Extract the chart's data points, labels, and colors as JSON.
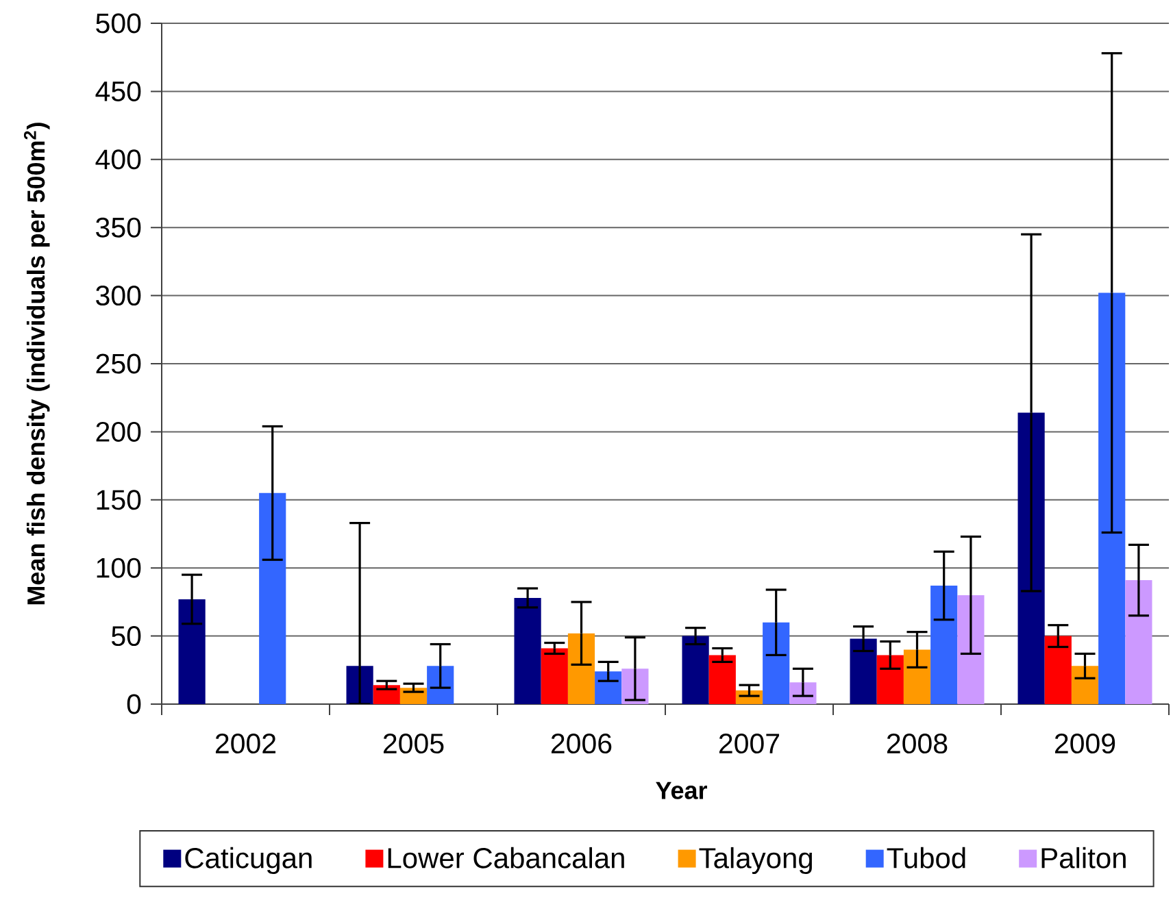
{
  "chart_data": {
    "type": "bar",
    "xlabel": "Year",
    "ylabel": "Mean fish density (individuals per 500m$^{2}$)",
    "categories": [
      "2002",
      "2005",
      "2006",
      "2007",
      "2008",
      "2009"
    ],
    "series": [
      {
        "name": "Caticugan",
        "color": "#000080",
        "values": [
          77,
          28,
          78,
          50,
          48,
          214
        ],
        "errors": [
          18,
          [
            0,
            133
          ],
          7,
          6,
          9,
          131
        ]
      },
      {
        "name": "Lower Cabancalan",
        "color": "#ff0000",
        "values": [
          null,
          14,
          41,
          36,
          36,
          50
        ],
        "errors": [
          null,
          3,
          4,
          5,
          10,
          8
        ]
      },
      {
        "name": "Talayong",
        "color": "#ff9900",
        "values": [
          null,
          12,
          52,
          10,
          40,
          28
        ],
        "errors": [
          null,
          3,
          23,
          4,
          13,
          9
        ]
      },
      {
        "name": "Tubod",
        "color": "#3366ff",
        "values": [
          155,
          28,
          24,
          60,
          87,
          302
        ],
        "errors": [
          49,
          16,
          7,
          24,
          25,
          176
        ]
      },
      {
        "name": "Paliton",
        "color": "#cc99ff",
        "values": [
          null,
          null,
          26,
          16,
          80,
          91
        ],
        "errors": [
          null,
          null,
          23,
          10,
          43,
          26
        ]
      }
    ],
    "ylim": [
      0,
      500
    ],
    "yticks": [
      0,
      50,
      100,
      150,
      200,
      250,
      300,
      350,
      400,
      450,
      500
    ],
    "grid": "y",
    "legend": "bottom"
  }
}
